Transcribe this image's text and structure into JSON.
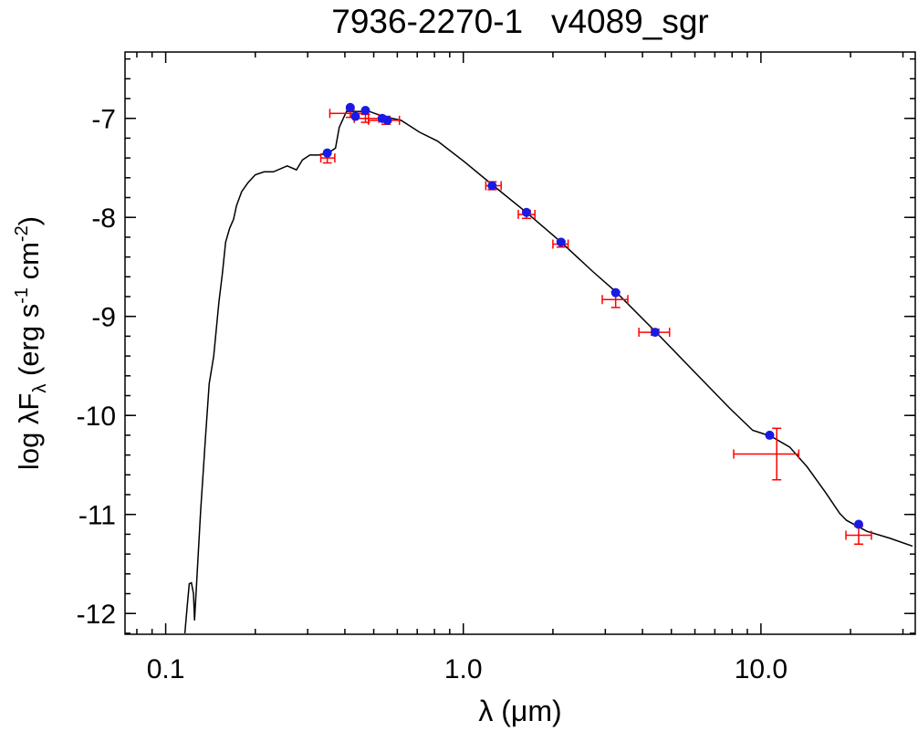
{
  "chart_data": {
    "type": "sed",
    "title": "7936-2270-1   v4089_sgr",
    "xlabel": "λ (μm)",
    "ylabel": [
      "log λF",
      "λ",
      " (erg s",
      "-1",
      " cm",
      "-2",
      ")"
    ],
    "xscale": "log",
    "xlim": [
      0.073,
      33
    ],
    "ylim": [
      -12.21,
      -6.33
    ],
    "xticks": [
      0.1,
      {
        "value": 1,
        "label": "1.0"
      },
      {
        "value": 10,
        "label": "10.0"
      }
    ],
    "yticks": [
      -7,
      -8,
      -9,
      -10,
      -11,
      -12
    ],
    "model": {
      "color": "#000000",
      "x": [
        0.116,
        0.118,
        0.12,
        0.122,
        0.124,
        0.125,
        0.127,
        0.131,
        0.136,
        0.14,
        0.145,
        0.151,
        0.155,
        0.159,
        0.164,
        0.169,
        0.173,
        0.18,
        0.189,
        0.2,
        0.214,
        0.23,
        0.256,
        0.275,
        0.288,
        0.305,
        0.327,
        0.352,
        0.372,
        0.383,
        0.405,
        0.441,
        0.483,
        0.537,
        0.618,
        0.713,
        0.82,
        1.01,
        1.25,
        1.63,
        2.13,
        2.73,
        3.25,
        4.41,
        5.93,
        7.87,
        9.38,
        10.8,
        12.5,
        14.3,
        16.5,
        18.4,
        19.4,
        22.7,
        27.1,
        32.3
      ],
      "y": [
        -12.2,
        -11.94,
        -11.7,
        -11.69,
        -11.8,
        -12.07,
        -11.7,
        -10.97,
        -10.23,
        -9.68,
        -9.4,
        -8.85,
        -8.57,
        -8.25,
        -8.11,
        -8.02,
        -7.88,
        -7.74,
        -7.65,
        -7.57,
        -7.54,
        -7.54,
        -7.48,
        -7.52,
        -7.42,
        -7.37,
        -7.37,
        -7.35,
        -7.3,
        -7.09,
        -6.93,
        -6.93,
        -6.93,
        -6.98,
        -7.02,
        -7.14,
        -7.23,
        -7.44,
        -7.67,
        -7.95,
        -8.25,
        -8.55,
        -8.75,
        -9.15,
        -9.55,
        -9.93,
        -10.15,
        -10.21,
        -10.32,
        -10.52,
        -10.78,
        -10.99,
        -11.06,
        -11.17,
        -11.24,
        -11.32
      ]
    },
    "observed": {
      "color": "#ff0000",
      "x": [
        0.349,
        0.417,
        0.469,
        0.55,
        1.25,
        1.63,
        2.13,
        3.25,
        4.41,
        11.3,
        21.3
      ],
      "y": [
        -7.4,
        -6.95,
        -7.0,
        -7.02,
        -7.68,
        -7.97,
        -8.27,
        -8.83,
        -9.16,
        -10.39,
        -11.21
      ],
      "yerr": [
        0.05,
        0.04,
        0.04,
        0.04,
        0.04,
        0.04,
        0.03,
        0.08,
        0.03,
        0.26,
        0.09
      ],
      "xmin": [
        0.332,
        0.356,
        0.43,
        0.48,
        1.19,
        1.53,
        2.0,
        2.93,
        3.89,
        8.1,
        19.3
      ],
      "xmax": [
        0.37,
        0.48,
        0.52,
        0.61,
        1.34,
        1.74,
        2.25,
        3.57,
        4.93,
        13.4,
        23.5
      ]
    },
    "model_fluxes": {
      "color": "#1a1ae6",
      "x": [
        0.349,
        0.417,
        0.434,
        0.469,
        0.534,
        0.556,
        1.25,
        1.63,
        2.13,
        3.25,
        4.41,
        10.7,
        21.3
      ],
      "y": [
        -7.35,
        -6.89,
        -6.98,
        -6.92,
        -7.0,
        -7.02,
        -7.68,
        -7.95,
        -8.25,
        -8.76,
        -9.16,
        -10.2,
        -11.1
      ]
    }
  }
}
